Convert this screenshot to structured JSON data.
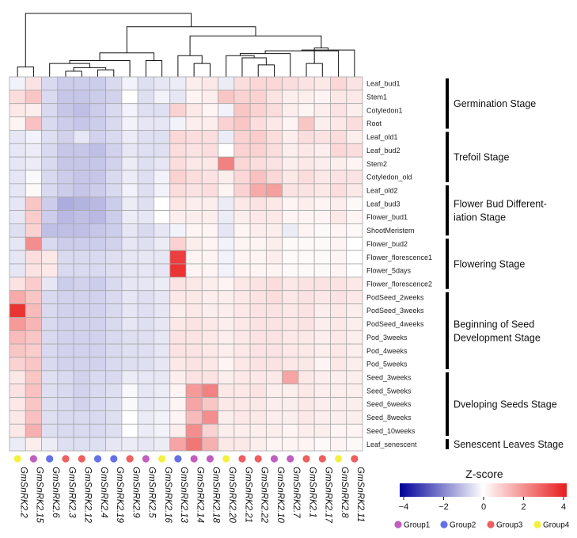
{
  "chart_data": {
    "type": "heatmap",
    "title": "",
    "colorbar": {
      "title": "Z-score",
      "ticks": [
        -4,
        -2,
        0,
        2,
        4
      ],
      "range": [
        -4,
        4
      ],
      "low_color": "#000099",
      "mid_color": "#ffffff",
      "high_color": "#e81c1c"
    },
    "columns": [
      "GmSnRK2.2",
      "GmSnRK2.15",
      "GmSnRK2.6",
      "GmSnRK2.3",
      "GmSnRK2.12",
      "GmSnRK2.4",
      "GmSnRK2.19",
      "GmSnRK2.9",
      "GmSnRK2.5",
      "GmSnRK2.16",
      "GmSnRK2.13",
      "GmSnRK2.14",
      "GmSnRK2.18",
      "GmSnRK2.20",
      "GmSnRK2.21",
      "GmSnRK2.22",
      "GmSnRK2.10",
      "GmSnRK2.7",
      "GmSnRK2.1",
      "GmSnRK2.17",
      "GmSnRK2.8",
      "GmSnRK2.11"
    ],
    "column_groups": [
      "Group4",
      "Group1",
      "Group2",
      "Group3",
      "Group3",
      "Group2",
      "Group2",
      "Group3",
      "Group1",
      "Group4",
      "Group2",
      "Group1",
      "Group1",
      "Group4",
      "Group3",
      "Group3",
      "Group1",
      "Group1",
      "Group3",
      "Group3",
      "Group4",
      "Group3"
    ],
    "rows": [
      "Leaf_bud1",
      "Stem1",
      "Cotyledon1",
      "Root",
      "Leaf_old1",
      "Leaf_bud2",
      "Stem2",
      "Cotyledon_old",
      "Leaf_old2",
      "Leaf_bud3",
      "Flower_bud1",
      "ShootMeristem",
      "Flower_bud2",
      "Flower_florescence1",
      "Flower_5days",
      "Flower_florescence2",
      "PodSeed_2weeks",
      "PodSeed_3weeks",
      "PodSeed_4weeks",
      "Pod_3weeks",
      "Pod_4weeks",
      "Pod_5weeks",
      "Seed_3weeks",
      "Seed_5weeks",
      "Seed_6weeks",
      "Seed_8weeks",
      "Seed_10weeks",
      "Leaf_senescent"
    ],
    "values": [
      [
        -0.2,
        0.5,
        -0.6,
        -0.8,
        -0.8,
        -0.8,
        -0.6,
        -0.2,
        -0.5,
        -0.4,
        -0.3,
        0.3,
        0.4,
        -0.3,
        0.6,
        0.7,
        0.7,
        0.6,
        0.5,
        0.4,
        0.7,
        0.5
      ],
      [
        0.6,
        1.0,
        -0.6,
        -0.9,
        -0.9,
        -0.8,
        -0.7,
        0.0,
        -0.5,
        -0.2,
        -0.4,
        0.2,
        0.3,
        1.0,
        0.8,
        0.8,
        0.5,
        0.3,
        0.3,
        0.2,
        0.4,
        0.4
      ],
      [
        0.4,
        0.3,
        -0.6,
        -0.9,
        -1.0,
        -0.8,
        -0.6,
        -0.2,
        -0.5,
        -0.5,
        0.8,
        0.4,
        0.2,
        -0.2,
        1.0,
        0.8,
        0.6,
        0.3,
        0.2,
        0.3,
        0.5,
        0.3
      ],
      [
        0.2,
        1.1,
        -0.6,
        -0.8,
        -0.9,
        -0.8,
        -0.6,
        -0.2,
        -0.4,
        -0.4,
        -0.2,
        0.3,
        0.3,
        0.8,
        1.0,
        0.6,
        0.4,
        0.2,
        1.0,
        0.3,
        0.4,
        0.6
      ],
      [
        -0.4,
        -0.2,
        -0.5,
        -0.7,
        -0.4,
        -0.7,
        -0.6,
        -0.3,
        -0.5,
        -0.5,
        0.7,
        0.6,
        0.6,
        -0.3,
        0.8,
        0.9,
        0.6,
        0.3,
        0.6,
        0.5,
        0.6,
        0.3
      ],
      [
        -0.4,
        -0.3,
        -0.6,
        -0.9,
        -0.9,
        -1.0,
        -0.7,
        -0.4,
        -0.5,
        -0.5,
        0.6,
        0.5,
        0.6,
        0.0,
        0.8,
        0.8,
        0.6,
        0.3,
        0.4,
        0.3,
        0.7,
        0.6
      ],
      [
        -0.4,
        -0.3,
        -0.6,
        -0.9,
        -0.9,
        -0.9,
        -0.7,
        -0.3,
        -0.5,
        -0.4,
        0.6,
        0.4,
        0.4,
        2.2,
        0.7,
        0.6,
        0.5,
        0.3,
        0.4,
        0.3,
        0.3,
        0.2
      ],
      [
        -0.4,
        -0.1,
        -0.6,
        -0.8,
        -0.9,
        -0.9,
        -0.6,
        -0.3,
        -0.5,
        -0.2,
        0.8,
        0.6,
        0.5,
        0.3,
        0.7,
        1.1,
        0.7,
        0.4,
        0.6,
        0.4,
        0.5,
        0.5
      ],
      [
        -0.4,
        0.1,
        -0.6,
        -0.8,
        -0.9,
        -0.8,
        -0.6,
        -0.2,
        -0.5,
        -0.2,
        0.6,
        0.5,
        0.6,
        0.2,
        0.8,
        1.5,
        1.7,
        0.5,
        0.5,
        0.4,
        0.6,
        0.4
      ],
      [
        -0.4,
        1.0,
        -0.8,
        -1.3,
        -1.2,
        -1.1,
        -0.8,
        -0.3,
        -0.5,
        0.0,
        0.4,
        0.3,
        0.3,
        -0.3,
        0.4,
        0.5,
        0.4,
        0.2,
        0.3,
        0.2,
        0.3,
        0.1
      ],
      [
        -0.4,
        0.9,
        -0.8,
        -1.1,
        -1.0,
        -1.1,
        -0.8,
        -0.3,
        -0.4,
        0.0,
        0.3,
        0.3,
        0.3,
        -0.3,
        0.3,
        0.4,
        0.4,
        0.2,
        0.2,
        0.2,
        0.4,
        0.2
      ],
      [
        -0.5,
        0.8,
        -1.0,
        -1.0,
        -1.0,
        -0.9,
        -0.8,
        -0.4,
        -0.6,
        -0.4,
        -0.2,
        0.2,
        0.2,
        -0.4,
        0.2,
        0.3,
        0.3,
        -0.3,
        0.2,
        0.1,
        0.2,
        0.1
      ],
      [
        -0.4,
        2.0,
        -0.6,
        -0.8,
        -0.8,
        -0.8,
        -0.7,
        -0.4,
        -0.5,
        -0.3,
        0.8,
        0.3,
        0.2,
        -0.2,
        0.2,
        0.2,
        0.3,
        0.1,
        0.1,
        0.1,
        0.2,
        0.0
      ],
      [
        -0.4,
        0.6,
        0.4,
        -0.6,
        -0.6,
        -0.6,
        -0.5,
        -0.4,
        -0.4,
        -0.4,
        3.4,
        0.2,
        0.2,
        -0.2,
        0.2,
        0.2,
        0.3,
        0.1,
        0.1,
        0.1,
        0.2,
        0.0
      ],
      [
        -0.4,
        0.5,
        0.4,
        -0.6,
        -0.6,
        -0.6,
        -0.5,
        -0.4,
        -0.4,
        -0.4,
        3.6,
        0.2,
        0.2,
        -0.2,
        0.2,
        0.2,
        0.2,
        0.1,
        0.1,
        0.1,
        0.2,
        0.0
      ],
      [
        0.5,
        0.9,
        -0.4,
        -0.8,
        -0.7,
        -0.8,
        -0.6,
        -0.4,
        -0.4,
        -0.3,
        0.5,
        0.4,
        0.3,
        0.2,
        0.4,
        0.5,
        0.6,
        0.4,
        0.5,
        0.5,
        0.5,
        0.4
      ],
      [
        1.5,
        1.0,
        -0.6,
        -0.7,
        -0.7,
        -0.7,
        -0.6,
        -0.4,
        -0.5,
        -0.4,
        0.4,
        0.4,
        0.3,
        0.3,
        0.4,
        0.5,
        0.6,
        0.4,
        0.5,
        0.4,
        0.5,
        0.4
      ],
      [
        3.6,
        1.2,
        -0.6,
        -0.7,
        -0.7,
        -0.7,
        -0.6,
        -0.4,
        -0.5,
        -0.4,
        0.3,
        0.4,
        0.3,
        0.3,
        0.4,
        0.5,
        0.5,
        0.4,
        0.5,
        0.3,
        0.4,
        0.3
      ],
      [
        1.8,
        1.3,
        -0.6,
        -0.7,
        -0.7,
        -0.7,
        -0.6,
        -0.4,
        -0.5,
        -0.4,
        0.4,
        0.5,
        0.4,
        0.3,
        0.4,
        0.5,
        0.5,
        0.4,
        0.5,
        0.3,
        0.4,
        0.3
      ],
      [
        1.2,
        1.0,
        -0.6,
        -0.7,
        -0.7,
        -0.7,
        -0.6,
        -0.5,
        -0.5,
        -0.4,
        0.5,
        0.5,
        0.4,
        0.3,
        0.4,
        0.5,
        0.5,
        0.4,
        0.4,
        0.3,
        0.4,
        0.3
      ],
      [
        1.0,
        0.9,
        -0.6,
        -0.7,
        -0.7,
        -0.7,
        -0.6,
        -0.5,
        -0.5,
        -0.4,
        0.5,
        0.5,
        0.4,
        0.3,
        0.4,
        0.5,
        0.5,
        0.4,
        0.4,
        0.3,
        0.4,
        0.3
      ],
      [
        0.8,
        1.0,
        -0.6,
        -0.7,
        -0.7,
        -0.7,
        -0.6,
        -0.5,
        -0.5,
        -0.4,
        0.4,
        0.5,
        0.4,
        0.2,
        0.4,
        0.5,
        0.5,
        0.4,
        0.4,
        0.2,
        0.4,
        0.3
      ],
      [
        0.4,
        1.0,
        -0.5,
        -0.6,
        -0.7,
        -0.6,
        -0.6,
        -0.3,
        -0.4,
        -0.4,
        0.3,
        0.5,
        0.5,
        0.3,
        0.4,
        0.4,
        0.4,
        1.6,
        0.4,
        0.3,
        0.3,
        0.3
      ],
      [
        0.5,
        1.1,
        -0.5,
        -0.6,
        -0.7,
        -0.6,
        -0.5,
        -0.1,
        -0.4,
        -0.3,
        0.2,
        1.8,
        2.2,
        0.4,
        0.4,
        0.5,
        0.3,
        0.3,
        0.4,
        0.3,
        0.3,
        0.3
      ],
      [
        0.4,
        1.0,
        -0.5,
        -0.6,
        -0.7,
        -0.6,
        -0.5,
        -0.1,
        -0.4,
        -0.3,
        0.2,
        1.6,
        1.0,
        0.4,
        0.4,
        0.4,
        0.3,
        0.3,
        0.4,
        0.3,
        0.3,
        0.3
      ],
      [
        0.4,
        1.1,
        -0.5,
        -0.6,
        -0.6,
        -0.6,
        -0.5,
        0.0,
        -0.3,
        -0.2,
        0.2,
        1.2,
        2.0,
        0.3,
        0.4,
        0.4,
        0.3,
        0.3,
        0.4,
        0.3,
        0.3,
        0.3
      ],
      [
        0.4,
        1.4,
        -0.5,
        -0.6,
        -0.6,
        -0.6,
        -0.5,
        0.0,
        -0.3,
        -0.2,
        0.3,
        2.0,
        0.8,
        0.3,
        0.3,
        0.3,
        0.3,
        0.2,
        0.3,
        0.3,
        0.2,
        0.2
      ],
      [
        -0.3,
        0.3,
        -0.3,
        -0.5,
        -0.5,
        -0.5,
        -0.4,
        -0.3,
        -0.4,
        -0.3,
        1.6,
        2.4,
        1.4,
        0.4,
        0.4,
        0.3,
        0.2,
        0.2,
        0.2,
        0.1,
        0.2,
        0.1
      ]
    ],
    "stages": [
      {
        "label": "Germination Stage",
        "first_row": 0,
        "last_row": 3
      },
      {
        "label": "Trefoil Stage",
        "first_row": 4,
        "last_row": 7
      },
      {
        "label": "Flower Bud Different-\niation Stage",
        "first_row": 8,
        "last_row": 11
      },
      {
        "label": "Flowering Stage",
        "first_row": 12,
        "last_row": 15
      },
      {
        "label": "Beginning of Seed\nDevelopment Stage",
        "first_row": 16,
        "last_row": 21
      },
      {
        "label": "Dveloping Seeds Stage",
        "first_row": 22,
        "last_row": 26
      },
      {
        "label": "Senescent Leaves Stage",
        "first_row": 27,
        "last_row": 27
      }
    ],
    "groups": [
      {
        "name": "Group1",
        "color": "#c05fc0"
      },
      {
        "name": "Group2",
        "color": "#6470e8"
      },
      {
        "name": "Group3",
        "color": "#ee5f5f"
      },
      {
        "name": "Group4",
        "color": "#f4f040"
      }
    ],
    "dendrogram": {
      "merges": [
        [
          0,
          1,
          0.14
        ],
        [
          3,
          4,
          0.08
        ],
        [
          5,
          6,
          0.1
        ],
        [
          -2,
          -3,
          0.13
        ],
        [
          2,
          -4,
          0.19
        ],
        [
          -5,
          7,
          0.23
        ],
        [
          8,
          9,
          0.23
        ],
        [
          -6,
          -7,
          0.34
        ],
        [
          11,
          12,
          0.19
        ],
        [
          10,
          -9,
          0.3
        ],
        [
          15,
          16,
          0.17
        ],
        [
          18,
          19,
          0.19
        ],
        [
          14,
          -11,
          0.27
        ],
        [
          -13,
          13,
          0.3
        ],
        [
          -14,
          17,
          0.33
        ],
        [
          -15,
          20,
          0.37
        ],
        [
          -16,
          21,
          0.38
        ],
        [
          -17,
          -12,
          0.41
        ],
        [
          -10,
          -18,
          0.58
        ],
        [
          -8,
          -19,
          0.71
        ],
        [
          -1,
          -20,
          0.9
        ]
      ]
    }
  }
}
